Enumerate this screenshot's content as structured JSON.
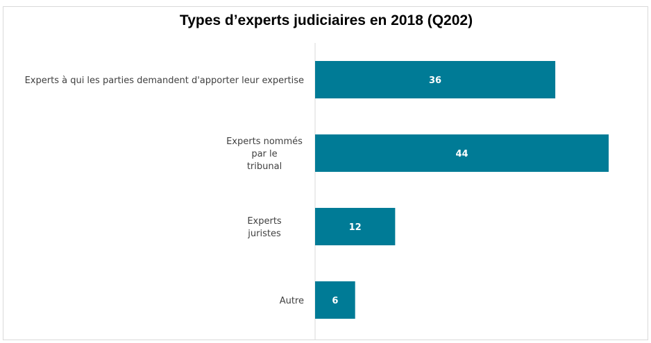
{
  "chart_data": {
    "type": "bar",
    "orientation": "horizontal",
    "title": "Types d’experts judiciaires en 2018 (Q202)",
    "xlabel": "",
    "ylabel": "",
    "categories": [
      [
        "Experts à qui les parties demandent d'apporter leur expertise"
      ],
      [
        "Experts nommés",
        "par le",
        "tribunal"
      ],
      [
        "Experts",
        "juristes"
      ],
      [
        "Autre"
      ]
    ],
    "values": [
      36,
      44,
      12,
      6
    ],
    "data_labels": [
      "36",
      "44",
      "12",
      "6"
    ],
    "xlim": [
      0,
      44
    ],
    "grid": false,
    "legend": "none",
    "colors": {
      "bar": "#007b96",
      "axis": "#d9d9d9",
      "label": "#404040",
      "value_label": "#ffffff"
    }
  }
}
